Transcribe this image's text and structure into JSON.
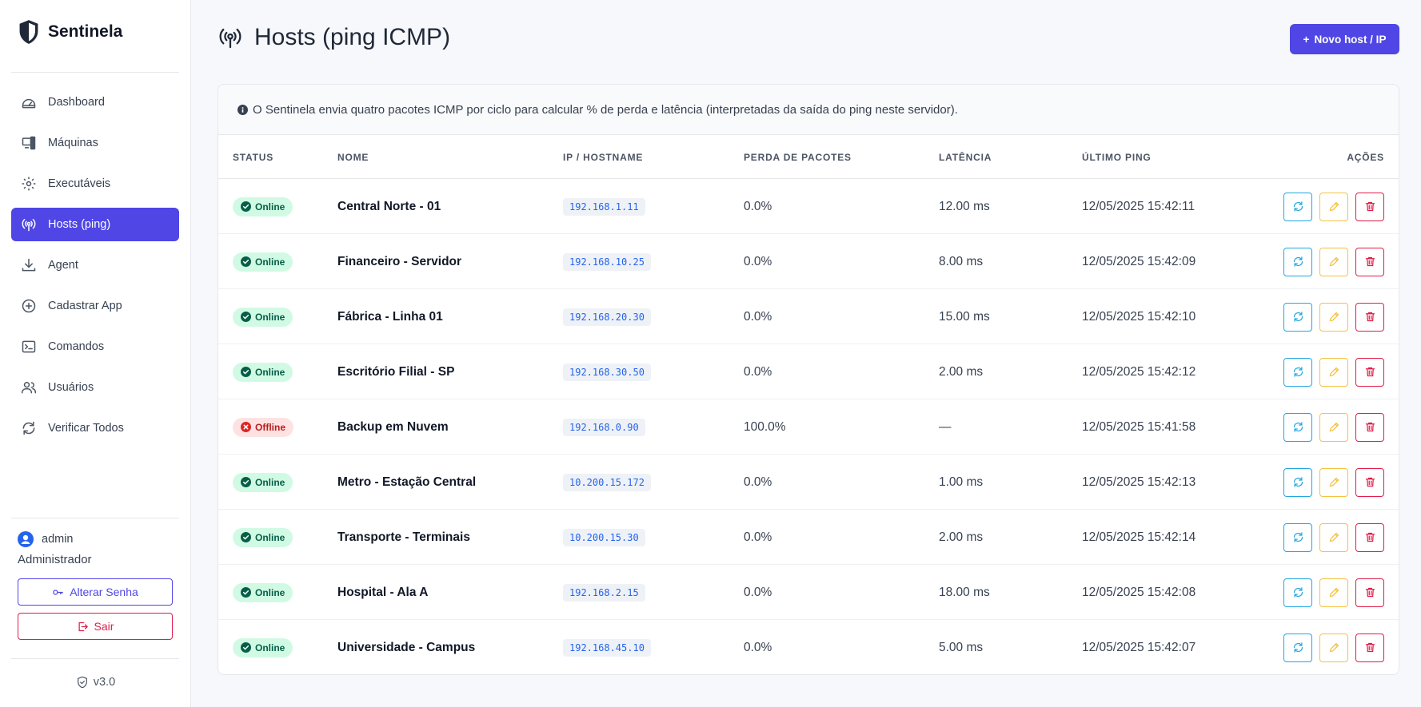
{
  "app": {
    "name": "Sentinela",
    "version": "v3.0"
  },
  "sidebar": {
    "items": [
      {
        "label": "Dashboard",
        "icon": "gauge-icon"
      },
      {
        "label": "Máquinas",
        "icon": "devices-icon"
      },
      {
        "label": "Executáveis",
        "icon": "gear-icon"
      },
      {
        "label": "Hosts (ping)",
        "icon": "broadcast-icon",
        "active": true
      },
      {
        "label": "Agent",
        "icon": "download-icon"
      },
      {
        "label": "Cadastrar App",
        "icon": "plus-circle-icon"
      },
      {
        "label": "Comandos",
        "icon": "terminal-icon"
      },
      {
        "label": "Usuários",
        "icon": "users-icon"
      },
      {
        "label": "Verificar Todos",
        "icon": "refresh-icon"
      }
    ],
    "user": {
      "name": "admin",
      "role": "Administrador"
    },
    "change_password_label": "Alterar Senha",
    "logout_label": "Sair"
  },
  "header": {
    "title": "Hosts (ping ICMP)",
    "new_button_label": "Novo host / IP"
  },
  "info_text": "O Sentinela envia quatro pacotes ICMP por ciclo para calcular % de perda e latência (interpretadas da saída do ping neste servidor).",
  "table": {
    "columns": {
      "status": "STATUS",
      "name": "NOME",
      "ip": "IP / HOSTNAME",
      "loss": "PERDA DE PACOTES",
      "latency": "LATÊNCIA",
      "last_ping": "ÚLTIMO PING",
      "actions": "AÇÕES"
    },
    "rows": [
      {
        "status": "Online",
        "name": "Central Norte - 01",
        "ip": "192.168.1.11",
        "loss": "0.0%",
        "latency": "12.00 ms",
        "last_ping": "12/05/2025 15:42:11"
      },
      {
        "status": "Online",
        "name": "Financeiro - Servidor",
        "ip": "192.168.10.25",
        "loss": "0.0%",
        "latency": "8.00 ms",
        "last_ping": "12/05/2025 15:42:09"
      },
      {
        "status": "Online",
        "name": "Fábrica - Linha 01",
        "ip": "192.168.20.30",
        "loss": "0.0%",
        "latency": "15.00 ms",
        "last_ping": "12/05/2025 15:42:10"
      },
      {
        "status": "Online",
        "name": "Escritório Filial - SP",
        "ip": "192.168.30.50",
        "loss": "0.0%",
        "latency": "2.00 ms",
        "last_ping": "12/05/2025 15:42:12"
      },
      {
        "status": "Offline",
        "name": "Backup em Nuvem",
        "ip": "192.168.0.90",
        "loss": "100.0%",
        "latency": "—",
        "last_ping": "12/05/2025 15:41:58"
      },
      {
        "status": "Online",
        "name": "Metro - Estação Central",
        "ip": "10.200.15.172",
        "loss": "0.0%",
        "latency": "1.00 ms",
        "last_ping": "12/05/2025 15:42:13"
      },
      {
        "status": "Online",
        "name": "Transporte - Terminais",
        "ip": "10.200.15.30",
        "loss": "0.0%",
        "latency": "2.00 ms",
        "last_ping": "12/05/2025 15:42:14"
      },
      {
        "status": "Online",
        "name": "Hospital - Ala A",
        "ip": "192.168.2.15",
        "loss": "0.0%",
        "latency": "18.00 ms",
        "last_ping": "12/05/2025 15:42:08"
      },
      {
        "status": "Online",
        "name": "Universidade - Campus",
        "ip": "192.168.45.10",
        "loss": "0.0%",
        "latency": "5.00 ms",
        "last_ping": "12/05/2025 15:42:07"
      }
    ]
  },
  "colors": {
    "accent": "#4f46e5",
    "online": "#065f46",
    "offline": "#b91c1c",
    "refresh": "#22a7e0",
    "edit": "#f5c242",
    "delete": "#e11d48"
  }
}
